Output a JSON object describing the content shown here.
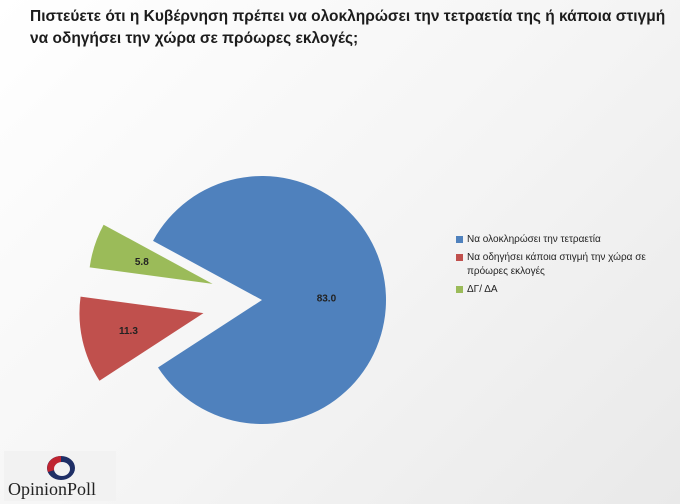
{
  "title": "Πιστεύετε ότι η Κυβέρνηση πρέπει να ολοκληρώσει την τετραετία της ή κάποια στιγμή να οδηγήσει την χώρα σε πρόωρες εκλογές;",
  "chart_data": {
    "type": "pie",
    "exploded": true,
    "series": [
      {
        "name": "Να ολοκληρώσει την τετραετία",
        "value": 83.0,
        "label": "83.0",
        "color": "#4F81BD"
      },
      {
        "name": "Να οδηγήσει κάποια στιγμή την χώρα σε πρόωρες εκλογές",
        "value": 11.3,
        "label": "11.3",
        "color": "#C0504D"
      },
      {
        "name": "ΔΓ/ ΔΑ",
        "value": 5.8,
        "label": "5.8",
        "color": "#9BBB59"
      }
    ],
    "legend_position": "right"
  },
  "logo": {
    "text": "OpinionPoll"
  }
}
